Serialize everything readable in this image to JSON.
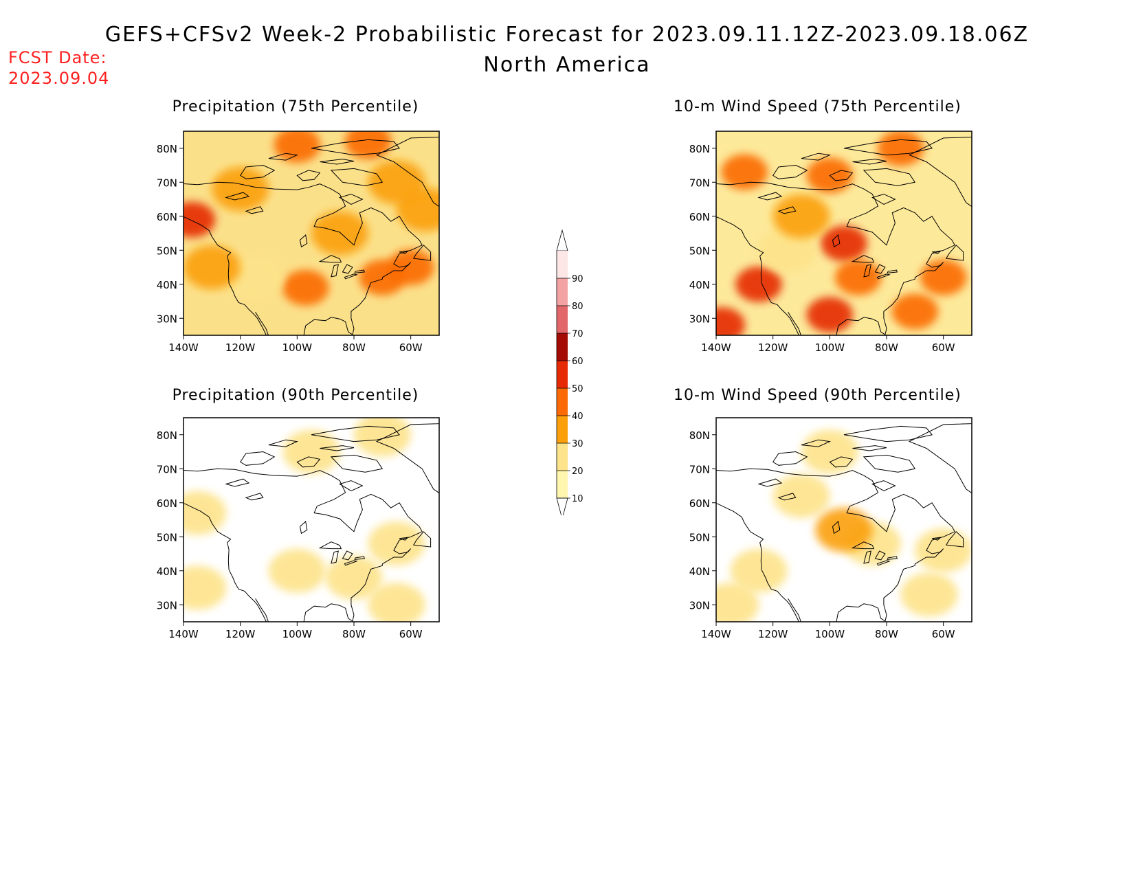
{
  "header": {
    "title": "GEFS+CFSv2 Week-2 Probabilistic Forecast for 2023.09.11.12Z-2023.09.18.06Z",
    "subtitle": "North America",
    "fcst_label": "FCST Date:",
    "fcst_date": "2023.09.04"
  },
  "axes": {
    "lat_ticks": [
      "80N",
      "70N",
      "60N",
      "50N",
      "40N",
      "30N"
    ],
    "lon_ticks": [
      "140W",
      "120W",
      "100W",
      "80W",
      "60W"
    ]
  },
  "panels": [
    {
      "title": "Precipitation (75th Percentile)",
      "base": "#fbe08a",
      "blobs": [
        {
          "lon": -97,
          "lat": 39,
          "level": 3
        },
        {
          "lon": -70,
          "lat": 42,
          "level": 3
        },
        {
          "lon": -60,
          "lat": 45,
          "level": 3
        },
        {
          "lon": -100,
          "lat": 81,
          "level": 3
        },
        {
          "lon": -75,
          "lat": 82,
          "level": 3
        },
        {
          "lon": -137,
          "lat": 59,
          "level": 4
        },
        {
          "lon": -115,
          "lat": 42,
          "level": 1
        },
        {
          "lon": -55,
          "lat": 62,
          "level": 2
        },
        {
          "lon": -130,
          "lat": 45,
          "level": 2
        },
        {
          "lon": -85,
          "lat": 55,
          "level": 2
        },
        {
          "lon": -120,
          "lat": 68,
          "level": 2
        },
        {
          "lon": -65,
          "lat": 70,
          "level": 2
        }
      ]
    },
    {
      "title": "10-m Wind Speed (75th Percentile)",
      "base": "#fde99a",
      "blobs": [
        {
          "lon": -125,
          "lat": 40,
          "level": 4
        },
        {
          "lon": -138,
          "lat": 28,
          "level": 4
        },
        {
          "lon": -100,
          "lat": 31,
          "level": 4
        },
        {
          "lon": -60,
          "lat": 42,
          "level": 3
        },
        {
          "lon": -70,
          "lat": 32,
          "level": 3
        },
        {
          "lon": -100,
          "lat": 72,
          "level": 3
        },
        {
          "lon": -130,
          "lat": 73,
          "level": 3
        },
        {
          "lon": -75,
          "lat": 80,
          "level": 3
        },
        {
          "lon": -95,
          "lat": 52,
          "level": 4
        },
        {
          "lon": -115,
          "lat": 50,
          "level": 1
        },
        {
          "lon": -90,
          "lat": 42,
          "level": 3
        },
        {
          "lon": -110,
          "lat": 60,
          "level": 2
        }
      ]
    },
    {
      "title": "Precipitation (90th Percentile)",
      "base": "#ffffff",
      "blobs": [
        {
          "lon": -100,
          "lat": 40,
          "level": 1
        },
        {
          "lon": -65,
          "lat": 48,
          "level": 1
        },
        {
          "lon": -65,
          "lat": 30,
          "level": 1
        },
        {
          "lon": -95,
          "lat": 75,
          "level": 1
        },
        {
          "lon": -70,
          "lat": 80,
          "level": 1
        },
        {
          "lon": -135,
          "lat": 57,
          "level": 1
        },
        {
          "lon": -135,
          "lat": 35,
          "level": 1
        },
        {
          "lon": -80,
          "lat": 38,
          "level": 1
        }
      ]
    },
    {
      "title": "10-m Wind Speed (90th Percentile)",
      "base": "#ffffff",
      "blobs": [
        {
          "lon": -135,
          "lat": 30,
          "level": 1
        },
        {
          "lon": -65,
          "lat": 33,
          "level": 1
        },
        {
          "lon": -60,
          "lat": 46,
          "level": 1
        },
        {
          "lon": -100,
          "lat": 75,
          "level": 1
        },
        {
          "lon": -125,
          "lat": 40,
          "level": 1
        },
        {
          "lon": -85,
          "lat": 48,
          "level": 1
        },
        {
          "lon": -110,
          "lat": 62,
          "level": 1
        },
        {
          "lon": -95,
          "lat": 52,
          "level": 2
        }
      ]
    }
  ],
  "colorbar": {
    "labels": [
      "10",
      "20",
      "30",
      "40",
      "50",
      "60",
      "70",
      "80",
      "90"
    ],
    "colors": [
      "#fff6b0",
      "#fde38a",
      "#fba00b",
      "#fb6a05",
      "#e52a05",
      "#a40b05",
      "#e2676a",
      "#f4a3a4",
      "#fde6e6"
    ],
    "lowest_color": "#ffffff"
  }
}
